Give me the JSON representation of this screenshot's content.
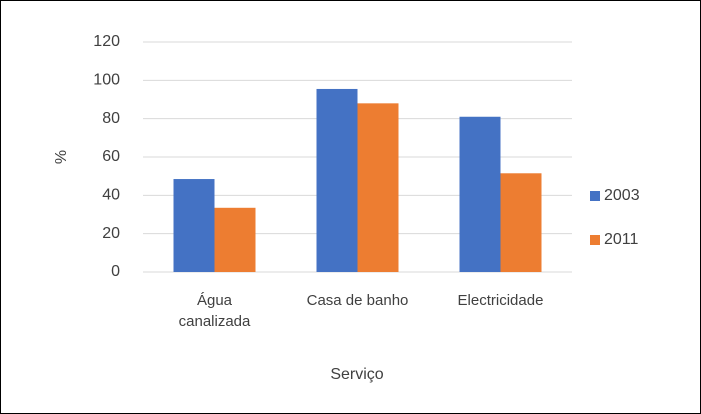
{
  "chart_data": {
    "type": "bar",
    "x_label": "Serviço",
    "y_label": "%",
    "categories": [
      "Água canalizada",
      "Casa de banho",
      "Electricidade"
    ],
    "series": [
      {
        "name": "2003",
        "color": "#4472c4",
        "values": [
          48.5,
          95.5,
          81
        ]
      },
      {
        "name": "2011",
        "color": "#ed7d31",
        "values": [
          33.5,
          88,
          51.5
        ]
      }
    ],
    "ylim": [
      0,
      120
    ],
    "yticks": [
      0,
      20,
      40,
      60,
      80,
      100,
      120
    ],
    "grid": true,
    "legend": "right"
  }
}
